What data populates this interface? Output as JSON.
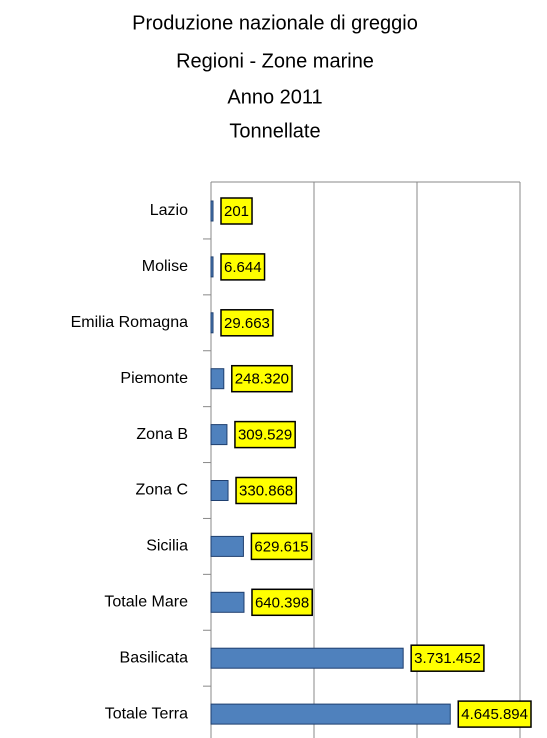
{
  "chart_data": {
    "type": "barh",
    "title": [
      "Produzione nazionale di greggio",
      "Regioni - Zone marine",
      "Anno 2011",
      "Tonnellate"
    ],
    "categories": [
      "Lazio",
      "Molise",
      "Emilia Romagna",
      "Piemonte",
      "Zona B",
      "Zona C",
      "Sicilia",
      "Totale Mare",
      "Basilicata",
      "Totale Terra"
    ],
    "values": [
      201,
      6644,
      29663,
      248320,
      309529,
      330868,
      629615,
      640398,
      3731452,
      4645894
    ],
    "value_labels": [
      "201",
      "6.644",
      "29.663",
      "248.320",
      "309.529",
      "330.868",
      "629.615",
      "640.398",
      "3.731.452",
      "4.645.894"
    ],
    "color": "#4f81bd",
    "xlim": [
      0,
      6000000
    ],
    "xticks": [
      0,
      2000000,
      4000000,
      6000000
    ],
    "grid": true
  }
}
